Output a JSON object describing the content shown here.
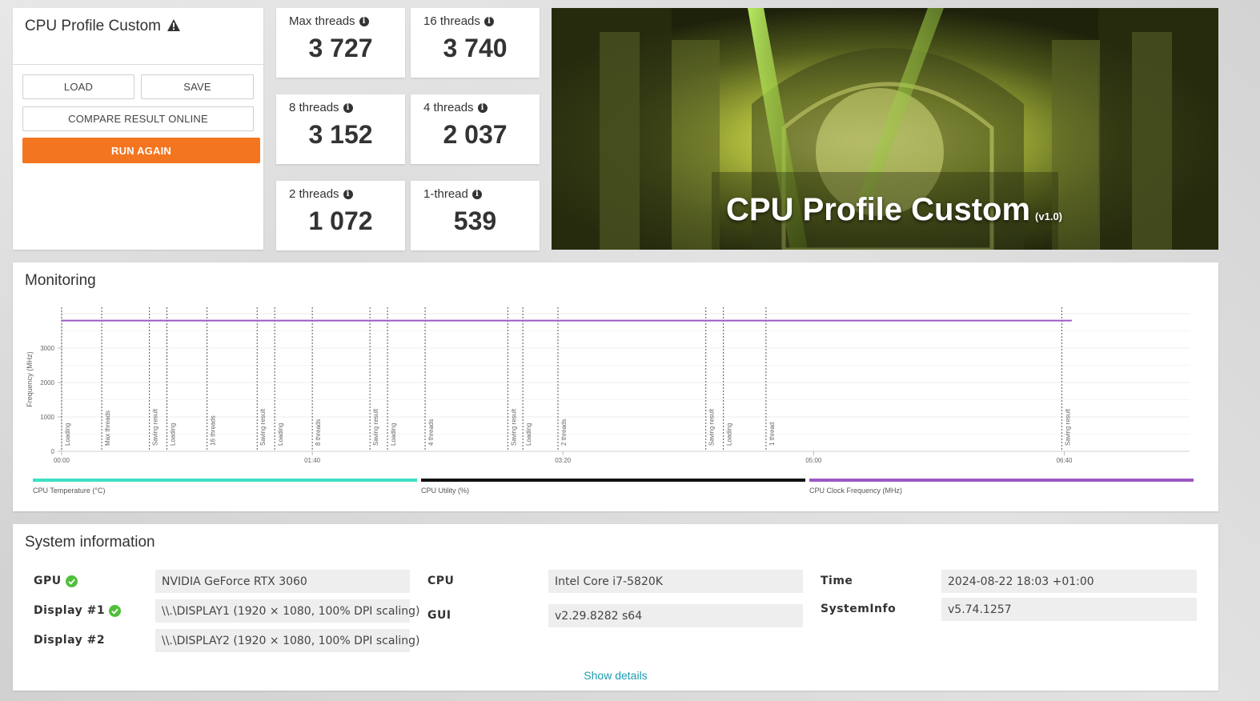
{
  "profile": {
    "title": "CPU Profile Custom",
    "load_label": "LOAD",
    "save_label": "SAVE",
    "compare_label": "COMPARE RESULT ONLINE",
    "run_label": "RUN AGAIN"
  },
  "scores": [
    {
      "label": "Max threads",
      "value": "3 727"
    },
    {
      "label": "16 threads",
      "value": "3 740"
    },
    {
      "label": "8 threads",
      "value": "3 152"
    },
    {
      "label": "4 threads",
      "value": "2 037"
    },
    {
      "label": "2 threads",
      "value": "1 072"
    },
    {
      "label": "1-thread",
      "value": "539"
    }
  ],
  "hero": {
    "title": "CPU Profile Custom",
    "version": "(v1.0)"
  },
  "monitoring": {
    "title": "Monitoring",
    "ylabel": "Frequency (MHz)",
    "yticks": [
      "0",
      "1000",
      "2000",
      "3000"
    ],
    "xticks": [
      "00:00",
      "01:40",
      "03:20",
      "05:00",
      "06:40"
    ],
    "legend": [
      {
        "label": "CPU Temperature (°C)",
        "color": "#3de0c4"
      },
      {
        "label": "CPU Utility (%)",
        "color": "#111111"
      },
      {
        "label": "CPU Clock Frequency (MHz)",
        "color": "#9b59c4"
      }
    ]
  },
  "chart_data": {
    "type": "line",
    "xlabel": "",
    "ylabel": "Frequency (MHz)",
    "xlim_seconds": [
      0,
      450
    ],
    "ylim": [
      0,
      4000
    ],
    "series": [
      {
        "name": "CPU Clock Frequency (MHz)",
        "x_seconds": [
          0,
          403
        ],
        "values": [
          3800,
          3800
        ]
      }
    ],
    "markers": [
      {
        "t": 0,
        "label": "Loading"
      },
      {
        "t": 16,
        "label": "Max threads"
      },
      {
        "t": 35,
        "label": "Saving result"
      },
      {
        "t": 42,
        "label": "Loading"
      },
      {
        "t": 58,
        "label": "16 threads"
      },
      {
        "t": 78,
        "label": "Saving result"
      },
      {
        "t": 85,
        "label": "Loading"
      },
      {
        "t": 100,
        "label": "8 threads"
      },
      {
        "t": 123,
        "label": "Saving result"
      },
      {
        "t": 130,
        "label": "Loading"
      },
      {
        "t": 145,
        "label": "4 threads"
      },
      {
        "t": 178,
        "label": "Saving result"
      },
      {
        "t": 184,
        "label": "Loading"
      },
      {
        "t": 198,
        "label": "2 threads"
      },
      {
        "t": 257,
        "label": "Saving result"
      },
      {
        "t": 264,
        "label": "Loading"
      },
      {
        "t": 281,
        "label": "1 thread"
      },
      {
        "t": 399,
        "label": "Saving result"
      }
    ]
  },
  "system": {
    "title": "System information",
    "gpu_label": "GPU",
    "gpu_value": "NVIDIA GeForce RTX 3060",
    "display1_label": "Display #1",
    "display1_value": "\\\\.\\DISPLAY1 (1920 × 1080, 100% DPI scaling)",
    "display2_label": "Display #2",
    "display2_value": "\\\\.\\DISPLAY2 (1920 × 1080, 100% DPI scaling)",
    "cpu_label": "CPU",
    "cpu_value": "Intel Core i7-5820K",
    "gui_label": "GUI",
    "gui_value": "v2.29.8282 s64",
    "time_label": "Time",
    "time_value": "2024-08-22 18:03 +01:00",
    "sysinfo_label": "SystemInfo",
    "sysinfo_value": "v5.74.1257",
    "show_details": "Show details"
  }
}
